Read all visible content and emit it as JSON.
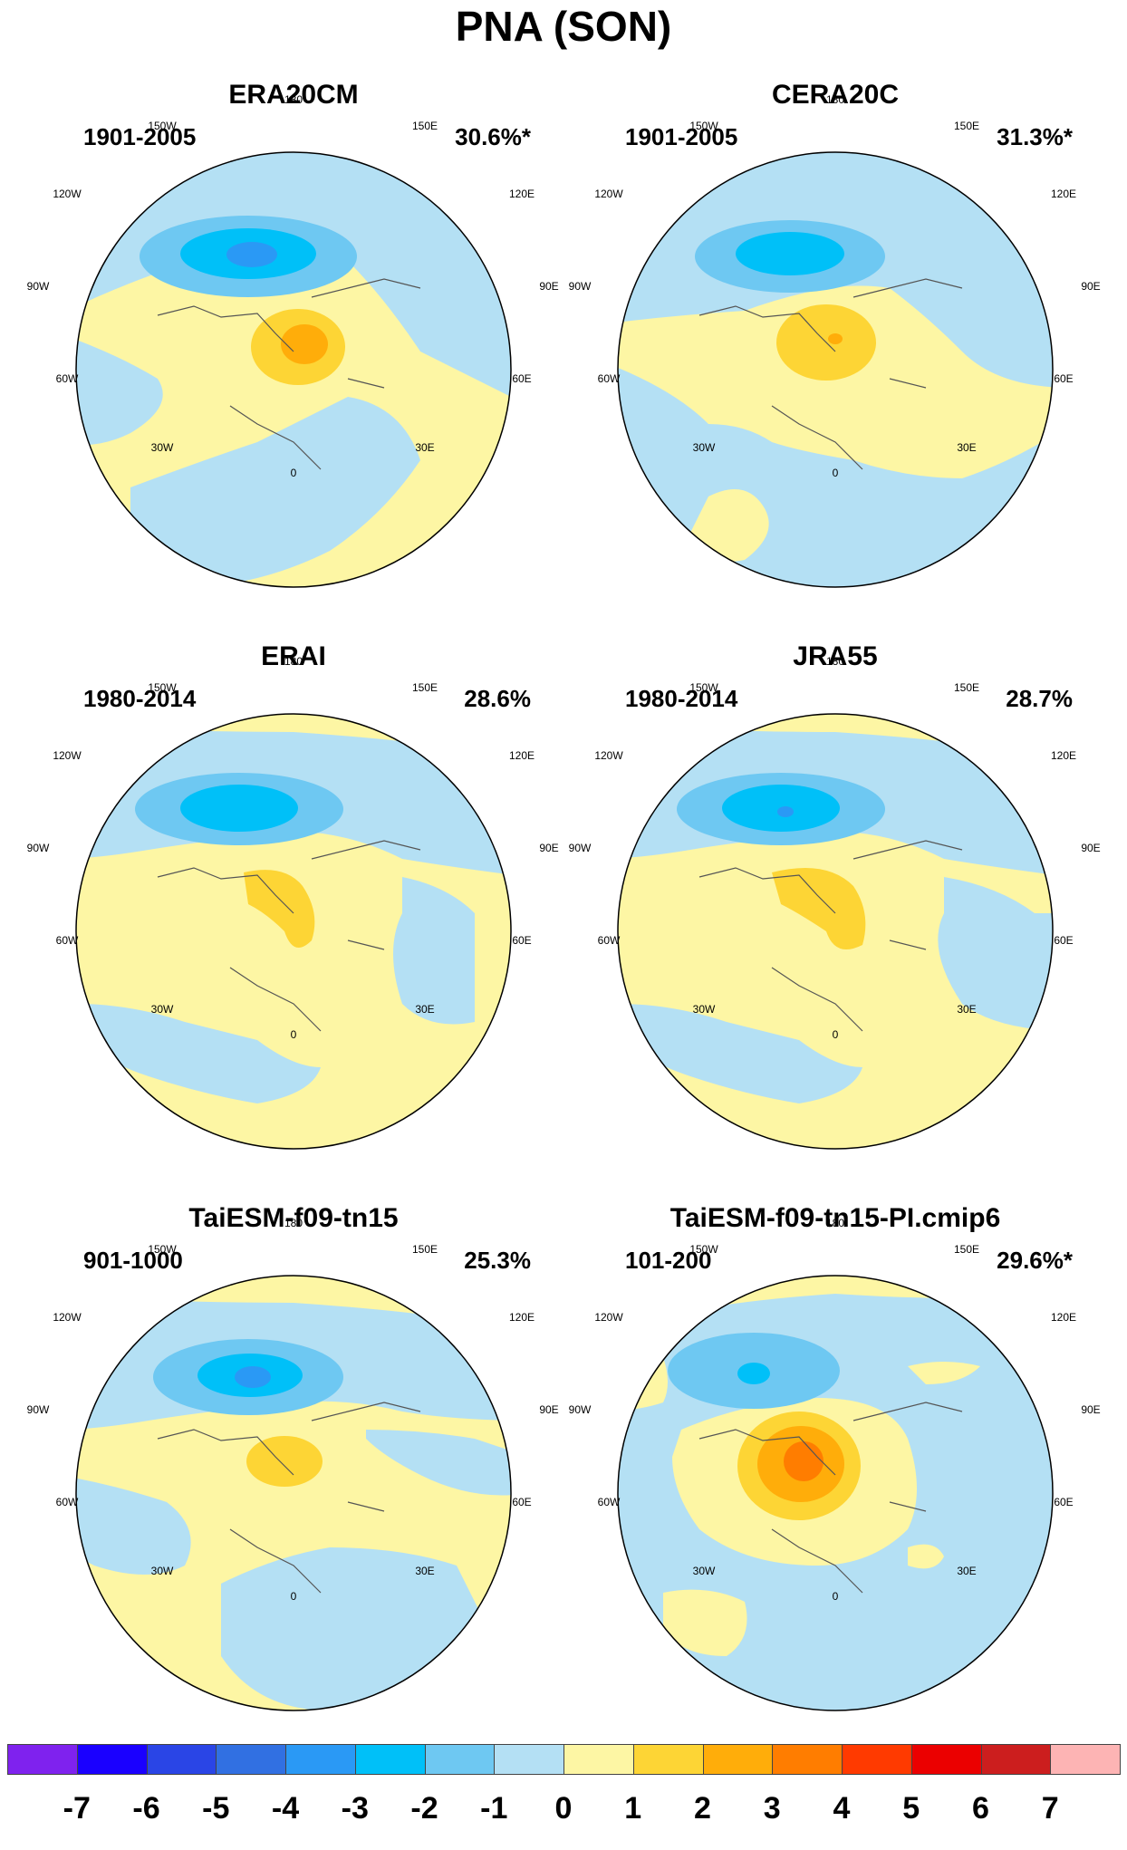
{
  "title": "PNA (SON)",
  "panels": [
    {
      "title": "ERA20CM",
      "period": "1901-2005",
      "pct": "30.6%*"
    },
    {
      "title": "CERA20C",
      "period": "1901-2005",
      "pct": "31.3%*"
    },
    {
      "title": "ERAI",
      "period": "1980-2014",
      "pct": "28.6%"
    },
    {
      "title": "JRA55",
      "period": "1980-2014",
      "pct": "28.7%"
    },
    {
      "title": "TaiESM-f09-tn15",
      "period": "901-1000",
      "pct": "25.3%"
    },
    {
      "title": "TaiESM-f09-tn15-PI.cmip6",
      "period": "101-200",
      "pct": "29.6%*"
    }
  ],
  "lon_labels": {
    "deg180": "180",
    "w150": "150W",
    "e150": "150E",
    "w120": "120W",
    "e120": "120E",
    "w90": "90W",
    "e90": "90E",
    "w60": "60W",
    "e60": "60E",
    "w30": "30W",
    "e30": "30E",
    "deg0": "0"
  },
  "colorbar": {
    "colors": [
      "#7f22ee",
      "#1a00ff",
      "#2a45e6",
      "#3170e2",
      "#2a99f5",
      "#00c0f8",
      "#6ec8f2",
      "#b4e0f4",
      "#fdf6a4",
      "#fdd535",
      "#ffad0a",
      "#ff7d00",
      "#ff3a00",
      "#eb0000",
      "#cc1e1e",
      "#fdb4b4"
    ],
    "labels": [
      "-7",
      "-6",
      "-5",
      "-4",
      "-3",
      "-2",
      "-1",
      "0",
      "1",
      "2",
      "3",
      "4",
      "5",
      "6",
      "7"
    ]
  },
  "field_colors": {
    "neg1": "#b4e0f4",
    "neg2": "#6ec8f2",
    "neg3": "#00c0f8",
    "neg4": "#2a99f5",
    "pos1": "#fdf6a4",
    "pos2": "#fdd535",
    "pos3": "#ffad0a",
    "pos4": "#ff7d00"
  }
}
